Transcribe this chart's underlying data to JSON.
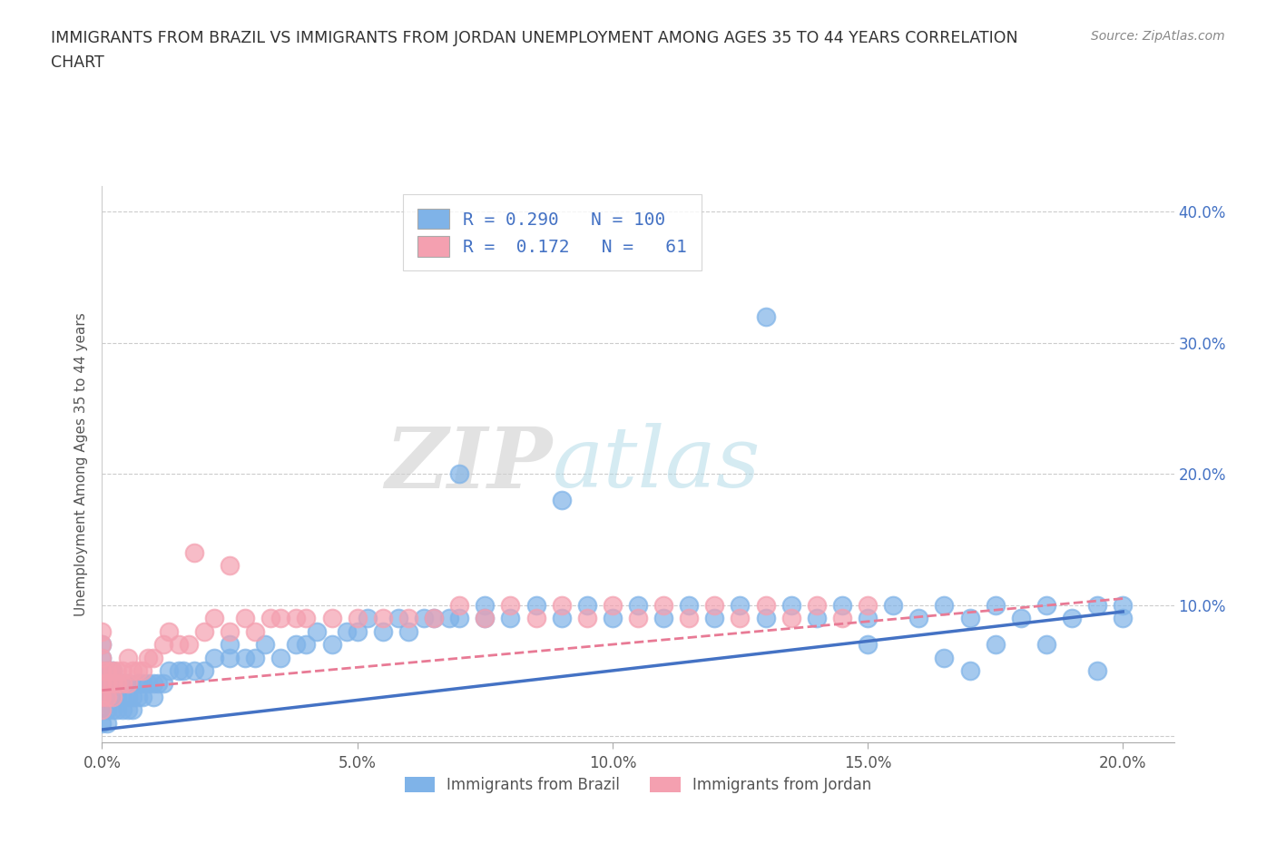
{
  "title_line1": "IMMIGRANTS FROM BRAZIL VS IMMIGRANTS FROM JORDAN UNEMPLOYMENT AMONG AGES 35 TO 44 YEARS CORRELATION",
  "title_line2": "CHART",
  "source_text": "Source: ZipAtlas.com",
  "ylabel": "Unemployment Among Ages 35 to 44 years",
  "xlim": [
    0.0,
    0.21
  ],
  "ylim": [
    -0.005,
    0.42
  ],
  "xticks": [
    0.0,
    0.05,
    0.1,
    0.15,
    0.2
  ],
  "yticks": [
    0.0,
    0.1,
    0.2,
    0.3,
    0.4
  ],
  "xtick_labels": [
    "0.0%",
    "5.0%",
    "10.0%",
    "15.0%",
    "20.0%"
  ],
  "ytick_labels": [
    "",
    "10.0%",
    "20.0%",
    "30.0%",
    "40.0%"
  ],
  "brazil_color": "#7fb3e8",
  "jordan_color": "#f4a0b0",
  "brazil_R": 0.29,
  "brazil_N": 100,
  "jordan_R": 0.172,
  "jordan_N": 61,
  "brazil_line_color": "#4472c4",
  "jordan_line_color": "#e87a95",
  "watermark_zip": "ZIP",
  "watermark_atlas": "atlas",
  "legend_brazil": "Immigrants from Brazil",
  "legend_jordan": "Immigrants from Jordan",
  "background_color": "#ffffff",
  "grid_color": "#cccccc",
  "title_color": "#333333",
  "right_ytick_color": "#4472c4",
  "brazil_scatter_x": [
    0.0,
    0.0,
    0.0,
    0.0,
    0.0,
    0.0,
    0.0,
    0.0,
    0.001,
    0.001,
    0.001,
    0.001,
    0.001,
    0.002,
    0.002,
    0.002,
    0.002,
    0.003,
    0.003,
    0.003,
    0.004,
    0.004,
    0.004,
    0.005,
    0.005,
    0.005,
    0.006,
    0.006,
    0.007,
    0.007,
    0.008,
    0.008,
    0.009,
    0.01,
    0.01,
    0.011,
    0.012,
    0.013,
    0.015,
    0.016,
    0.018,
    0.02,
    0.022,
    0.025,
    0.025,
    0.028,
    0.03,
    0.032,
    0.035,
    0.038,
    0.04,
    0.042,
    0.045,
    0.048,
    0.05,
    0.052,
    0.055,
    0.058,
    0.06,
    0.063,
    0.065,
    0.068,
    0.07,
    0.075,
    0.075,
    0.08,
    0.085,
    0.09,
    0.095,
    0.1,
    0.105,
    0.11,
    0.115,
    0.12,
    0.125,
    0.13,
    0.135,
    0.14,
    0.145,
    0.15,
    0.155,
    0.16,
    0.165,
    0.17,
    0.175,
    0.18,
    0.185,
    0.19,
    0.195,
    0.2,
    0.07,
    0.13,
    0.09,
    0.15,
    0.165,
    0.17,
    0.175,
    0.185,
    0.195,
    0.2
  ],
  "brazil_scatter_y": [
    0.01,
    0.02,
    0.03,
    0.03,
    0.04,
    0.05,
    0.06,
    0.07,
    0.01,
    0.02,
    0.03,
    0.04,
    0.05,
    0.02,
    0.03,
    0.04,
    0.05,
    0.02,
    0.03,
    0.04,
    0.02,
    0.03,
    0.04,
    0.02,
    0.03,
    0.04,
    0.02,
    0.03,
    0.03,
    0.04,
    0.03,
    0.04,
    0.04,
    0.03,
    0.04,
    0.04,
    0.04,
    0.05,
    0.05,
    0.05,
    0.05,
    0.05,
    0.06,
    0.06,
    0.07,
    0.06,
    0.06,
    0.07,
    0.06,
    0.07,
    0.07,
    0.08,
    0.07,
    0.08,
    0.08,
    0.09,
    0.08,
    0.09,
    0.08,
    0.09,
    0.09,
    0.09,
    0.09,
    0.09,
    0.1,
    0.09,
    0.1,
    0.09,
    0.1,
    0.09,
    0.1,
    0.09,
    0.1,
    0.09,
    0.1,
    0.09,
    0.1,
    0.09,
    0.1,
    0.09,
    0.1,
    0.09,
    0.1,
    0.09,
    0.1,
    0.09,
    0.1,
    0.09,
    0.1,
    0.09,
    0.2,
    0.32,
    0.18,
    0.07,
    0.06,
    0.05,
    0.07,
    0.07,
    0.05,
    0.1
  ],
  "jordan_scatter_x": [
    0.0,
    0.0,
    0.0,
    0.0,
    0.0,
    0.0,
    0.0,
    0.001,
    0.001,
    0.001,
    0.002,
    0.002,
    0.002,
    0.003,
    0.003,
    0.004,
    0.004,
    0.005,
    0.005,
    0.006,
    0.007,
    0.008,
    0.009,
    0.01,
    0.012,
    0.013,
    0.015,
    0.017,
    0.02,
    0.022,
    0.025,
    0.028,
    0.03,
    0.033,
    0.035,
    0.038,
    0.04,
    0.045,
    0.05,
    0.055,
    0.06,
    0.065,
    0.07,
    0.075,
    0.08,
    0.085,
    0.09,
    0.095,
    0.1,
    0.105,
    0.11,
    0.115,
    0.12,
    0.125,
    0.13,
    0.135,
    0.14,
    0.145,
    0.15,
    0.018,
    0.025
  ],
  "jordan_scatter_y": [
    0.02,
    0.03,
    0.04,
    0.05,
    0.06,
    0.07,
    0.08,
    0.03,
    0.04,
    0.05,
    0.03,
    0.04,
    0.05,
    0.04,
    0.05,
    0.04,
    0.05,
    0.04,
    0.06,
    0.05,
    0.05,
    0.05,
    0.06,
    0.06,
    0.07,
    0.08,
    0.07,
    0.07,
    0.08,
    0.09,
    0.08,
    0.09,
    0.08,
    0.09,
    0.09,
    0.09,
    0.09,
    0.09,
    0.09,
    0.09,
    0.09,
    0.09,
    0.1,
    0.09,
    0.1,
    0.09,
    0.1,
    0.09,
    0.1,
    0.09,
    0.1,
    0.09,
    0.1,
    0.09,
    0.1,
    0.09,
    0.1,
    0.09,
    0.1,
    0.14,
    0.13
  ]
}
